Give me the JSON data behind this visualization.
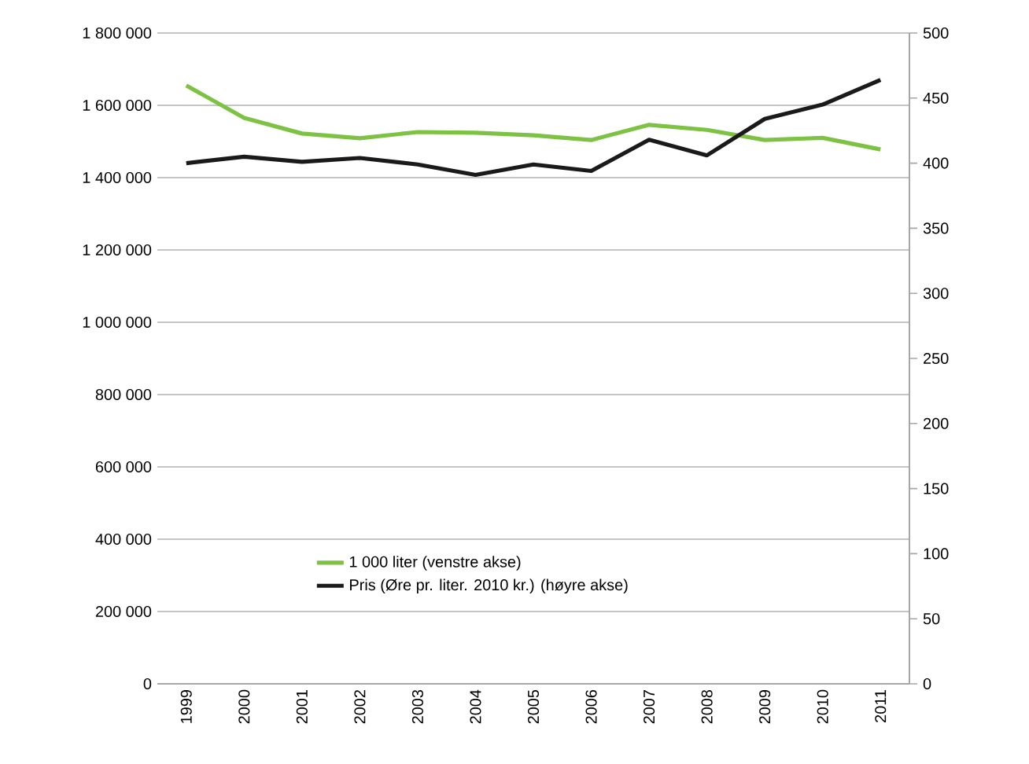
{
  "chart_data": {
    "type": "line",
    "categories": [
      "1999",
      "2000",
      "2001",
      "2002",
      "2003",
      "2004",
      "2005",
      "2006",
      "2007",
      "2008",
      "2009",
      "2010",
      "2011"
    ],
    "series": [
      {
        "name": "1 000 liter (venstre akse)",
        "color": "#7dc242",
        "values": [
          1655000,
          1565000,
          1522000,
          1509000,
          1526000,
          1524000,
          1517000,
          1504000,
          1546000,
          1532000,
          1504000,
          1510000,
          1478000
        ]
      },
      {
        "name": "Pris (Øre pr. liter. 2010 kr.) (høyre akse)",
        "color": "#1a1a1a",
        "axis": "y2",
        "values": [
          400,
          405,
          401,
          404,
          399,
          391,
          399,
          394,
          418,
          406,
          434,
          445,
          464
        ]
      }
    ],
    "ylim": [
      0,
      1800000
    ],
    "yticks": [
      {
        "value": 0,
        "label": "0"
      },
      {
        "value": 200000,
        "label": "200 000"
      },
      {
        "value": 400000,
        "label": "400 000"
      },
      {
        "value": 600000,
        "label": "600 000"
      },
      {
        "value": 800000,
        "label": "800 000"
      },
      {
        "value": 1000000,
        "label": "1 000 000"
      },
      {
        "value": 1200000,
        "label": "1 200 000"
      },
      {
        "value": 1400000,
        "label": "1 400 000"
      },
      {
        "value": 1600000,
        "label": "1 600 000"
      },
      {
        "value": 1800000,
        "label": "1 800 000"
      }
    ],
    "y2lim": [
      0,
      500
    ],
    "y2ticks": [
      0,
      50,
      100,
      150,
      200,
      250,
      300,
      350,
      400,
      450,
      500
    ],
    "grid": "y",
    "legend": "bottom",
    "marker": "none",
    "line_style": "solid"
  }
}
